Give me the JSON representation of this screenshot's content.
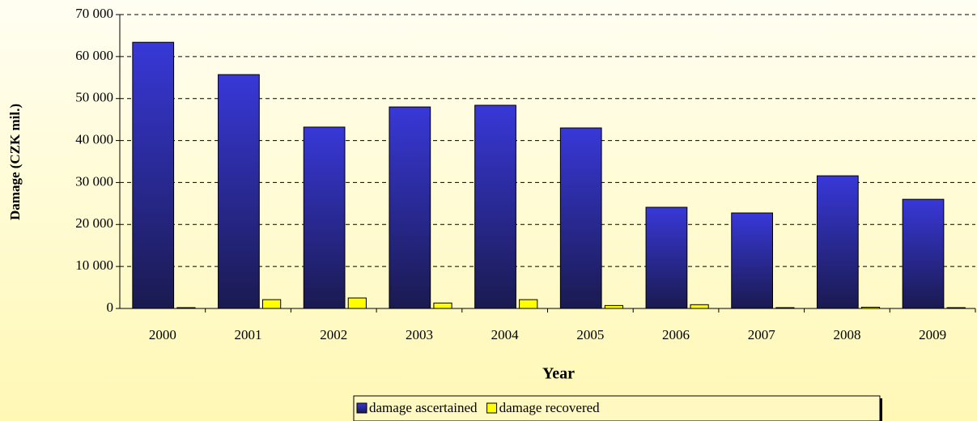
{
  "chart_data": {
    "type": "bar",
    "x_label": "Year",
    "y_label": "Damage  (CZK mil.)",
    "categories": [
      "2000",
      "2001",
      "2002",
      "2003",
      "2004",
      "2005",
      "2006",
      "2007",
      "2008",
      "2009"
    ],
    "series": [
      {
        "name": "damage ascertained",
        "color": "#3838d8",
        "values": [
          63400,
          55700,
          43200,
          48000,
          48400,
          43000,
          24100,
          22750,
          31600,
          26000
        ]
      },
      {
        "name": "damage recovered",
        "color": "#ffff00",
        "values": [
          200,
          2100,
          2500,
          1300,
          2100,
          700,
          900,
          200,
          300,
          200
        ]
      }
    ],
    "ylim": [
      0,
      70000
    ],
    "yticks": [
      0,
      {
        "value": 10000,
        "label": "10 000"
      },
      {
        "value": 20000,
        "label": "20 000"
      },
      {
        "value": 30000,
        "label": "30 000"
      },
      {
        "value": 40000,
        "label": "40 000"
      },
      {
        "value": 50000,
        "label": "50 000"
      },
      {
        "value": 60000,
        "label": "60 000"
      },
      {
        "value": 70000,
        "label": "70 000"
      }
    ],
    "grid": true,
    "legend": "bottom"
  }
}
